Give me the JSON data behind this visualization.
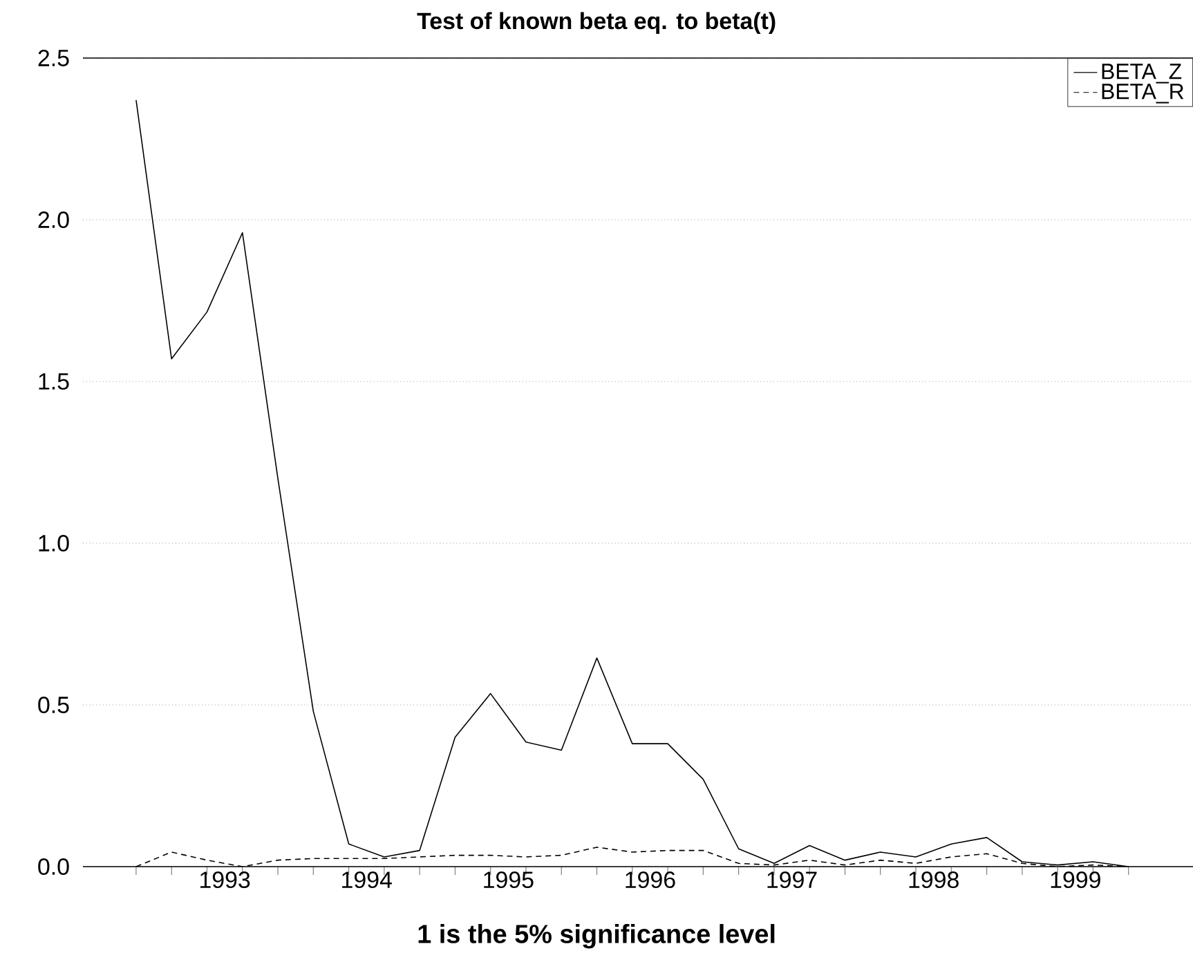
{
  "chart_data": {
    "type": "line",
    "title": "Test of known beta eq. to beta(t)",
    "xlabel": "1 is the 5% significance level",
    "x": [
      1992.875,
      1993.125,
      1993.375,
      1993.625,
      1993.875,
      1994.125,
      1994.375,
      1994.625,
      1994.875,
      1995.125,
      1995.375,
      1995.625,
      1995.875,
      1996.125,
      1996.375,
      1996.625,
      1996.875,
      1997.125,
      1997.375,
      1997.625,
      1997.875,
      1998.125,
      1998.375,
      1998.625,
      1998.875,
      1999.125,
      1999.375,
      1999.625,
      1999.875
    ],
    "series": [
      {
        "name": "BETA_Z",
        "color": "#000000",
        "line_style": "solid",
        "values": [
          2.37,
          1.57,
          1.715,
          1.96,
          1.2,
          0.48,
          0.07,
          0.03,
          0.05,
          0.4,
          0.535,
          0.385,
          0.36,
          0.645,
          0.38,
          0.38,
          0.27,
          0.055,
          0.01,
          0.065,
          0.02,
          0.045,
          0.03,
          0.07,
          0.09,
          0.015,
          0.005,
          0.015,
          0.0
        ]
      },
      {
        "name": "BETA_R",
        "color": "#000000",
        "line_style": "dashed",
        "values": [
          0.0,
          0.045,
          0.02,
          0.0,
          0.02,
          0.025,
          0.025,
          0.025,
          0.03,
          0.035,
          0.035,
          0.03,
          0.035,
          0.06,
          0.045,
          0.05,
          0.05,
          0.01,
          0.005,
          0.02,
          0.005,
          0.02,
          0.01,
          0.03,
          0.04,
          0.01,
          0.0,
          0.005,
          0.0
        ]
      }
    ],
    "xlim": [
      1992.5,
      2000.33
    ],
    "xticks": [
      {
        "value": 1992.875,
        "label": null
      },
      {
        "value": 1993.125,
        "label": null
      },
      {
        "value": 1993.375,
        "label": null
      },
      {
        "value": 1993.625,
        "label": null
      },
      {
        "value": 1993.875,
        "label": null
      },
      {
        "value": 1994.125,
        "label": null
      },
      {
        "value": 1994.375,
        "label": null
      },
      {
        "value": 1994.625,
        "label": null
      },
      {
        "value": 1994.875,
        "label": null
      },
      {
        "value": 1995.125,
        "label": null
      },
      {
        "value": 1995.375,
        "label": null
      },
      {
        "value": 1995.625,
        "label": null
      },
      {
        "value": 1995.875,
        "label": null
      },
      {
        "value": 1996.125,
        "label": null
      },
      {
        "value": 1996.375,
        "label": null
      },
      {
        "value": 1996.625,
        "label": null
      },
      {
        "value": 1996.875,
        "label": null
      },
      {
        "value": 1997.125,
        "label": null
      },
      {
        "value": 1997.375,
        "label": null
      },
      {
        "value": 1997.625,
        "label": null
      },
      {
        "value": 1997.875,
        "label": null
      },
      {
        "value": 1998.125,
        "label": null
      },
      {
        "value": 1998.375,
        "label": null
      },
      {
        "value": 1998.625,
        "label": null
      },
      {
        "value": 1998.875,
        "label": null
      },
      {
        "value": 1999.125,
        "label": null
      },
      {
        "value": 1999.375,
        "label": null
      },
      {
        "value": 1999.625,
        "label": null
      },
      {
        "value": 1999.875,
        "label": null
      },
      {
        "value": 1993.5,
        "label": "1993"
      },
      {
        "value": 1994.5,
        "label": "1994"
      },
      {
        "value": 1995.5,
        "label": "1995"
      },
      {
        "value": 1996.5,
        "label": "1996"
      },
      {
        "value": 1997.5,
        "label": "1997"
      },
      {
        "value": 1998.5,
        "label": "1998"
      },
      {
        "value": 1999.5,
        "label": "1999"
      }
    ],
    "ylim": [
      0,
      2.5
    ],
    "yticks": [
      {
        "value": 0,
        "label": "0.0"
      },
      {
        "value": 0.5,
        "label": "0.5"
      },
      {
        "value": 1,
        "label": "1.0"
      },
      {
        "value": 1.5,
        "label": "1.5"
      },
      {
        "value": 2,
        "label": "2.0"
      },
      {
        "value": 2.5,
        "label": "2.5"
      }
    ],
    "grid": "y",
    "legend": "top right",
    "marker": "none"
  }
}
